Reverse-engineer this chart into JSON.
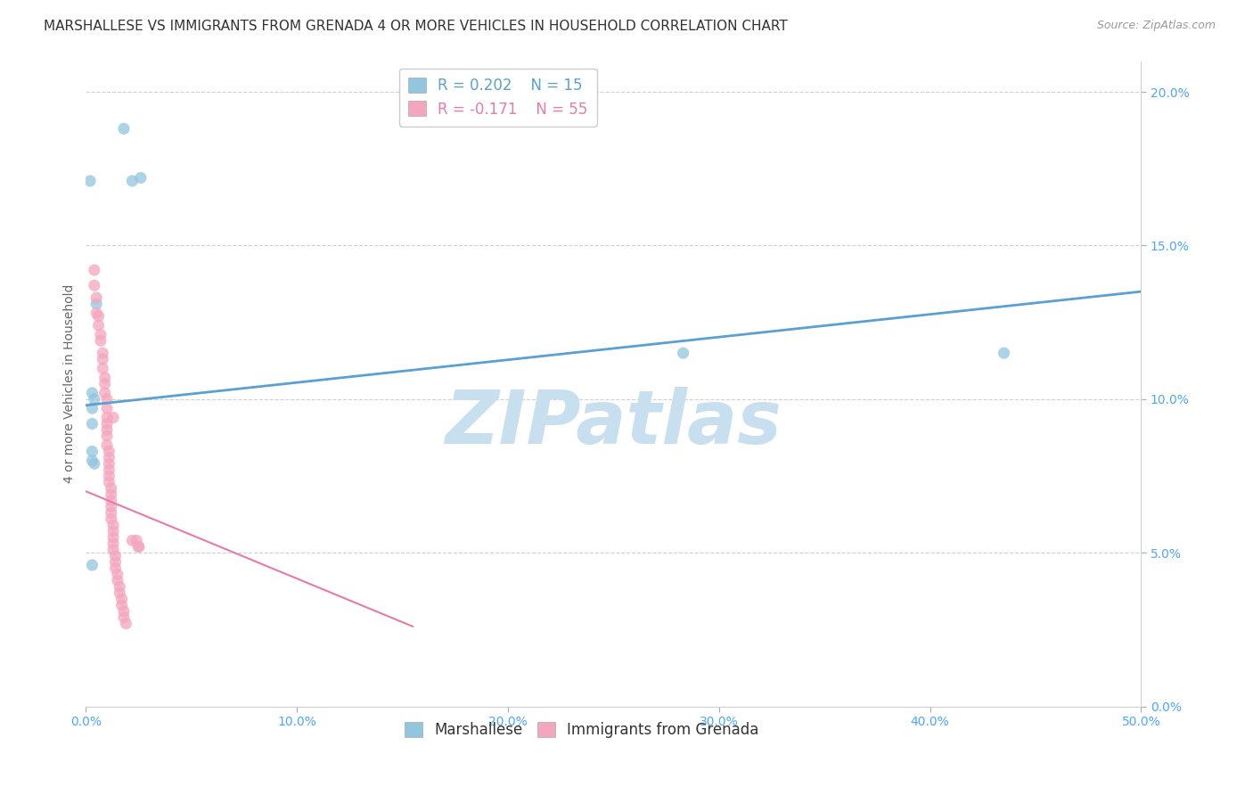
{
  "title": "MARSHALLESE VS IMMIGRANTS FROM GRENADA 4 OR MORE VEHICLES IN HOUSEHOLD CORRELATION CHART",
  "source": "Source: ZipAtlas.com",
  "ylabel": "4 or more Vehicles in Household",
  "legend_blue_r": "R = 0.202",
  "legend_blue_n": "N = 15",
  "legend_pink_r": "R = -0.171",
  "legend_pink_n": "N = 55",
  "legend_blue_label": "Marshallese",
  "legend_pink_label": "Immigrants from Grenada",
  "watermark": "ZIPatlas",
  "xlim": [
    0.0,
    0.5
  ],
  "ylim": [
    0.0,
    0.21
  ],
  "blue_scatter_x": [
    0.002,
    0.018,
    0.026,
    0.022,
    0.005,
    0.003,
    0.004,
    0.003,
    0.003,
    0.003,
    0.003,
    0.004,
    0.003,
    0.283,
    0.435
  ],
  "blue_scatter_y": [
    0.171,
    0.188,
    0.172,
    0.171,
    0.131,
    0.102,
    0.1,
    0.097,
    0.092,
    0.083,
    0.08,
    0.079,
    0.046,
    0.115,
    0.115
  ],
  "pink_scatter_x": [
    0.004,
    0.004,
    0.005,
    0.005,
    0.006,
    0.006,
    0.007,
    0.007,
    0.008,
    0.008,
    0.008,
    0.009,
    0.009,
    0.009,
    0.01,
    0.01,
    0.01,
    0.01,
    0.01,
    0.01,
    0.01,
    0.011,
    0.011,
    0.011,
    0.011,
    0.011,
    0.011,
    0.012,
    0.012,
    0.012,
    0.012,
    0.012,
    0.012,
    0.013,
    0.013,
    0.013,
    0.013,
    0.013,
    0.014,
    0.014,
    0.014,
    0.015,
    0.015,
    0.016,
    0.016,
    0.017,
    0.017,
    0.018,
    0.018,
    0.019,
    0.022,
    0.025,
    0.025,
    0.024,
    0.013
  ],
  "pink_scatter_y": [
    0.142,
    0.137,
    0.133,
    0.128,
    0.127,
    0.124,
    0.121,
    0.119,
    0.115,
    0.113,
    0.11,
    0.107,
    0.105,
    0.102,
    0.1,
    0.097,
    0.094,
    0.092,
    0.09,
    0.088,
    0.085,
    0.083,
    0.081,
    0.079,
    0.077,
    0.075,
    0.073,
    0.071,
    0.069,
    0.067,
    0.065,
    0.063,
    0.061,
    0.059,
    0.057,
    0.055,
    0.053,
    0.051,
    0.049,
    0.047,
    0.045,
    0.043,
    0.041,
    0.039,
    0.037,
    0.035,
    0.033,
    0.031,
    0.029,
    0.027,
    0.054,
    0.052,
    0.052,
    0.054,
    0.094
  ],
  "blue_line_x": [
    0.0,
    0.5
  ],
  "blue_line_y": [
    0.098,
    0.135
  ],
  "pink_line_x": [
    0.0,
    0.155
  ],
  "pink_line_y": [
    0.07,
    0.026
  ],
  "bg_color": "#ffffff",
  "blue_color": "#92c5de",
  "pink_color": "#f4a6be",
  "blue_line_color": "#5aa0d0",
  "pink_line_color": "#e87aaa",
  "grid_color": "#d0d0d0",
  "title_color": "#333333",
  "axis_label_color": "#4da6ff",
  "scatter_size": 90,
  "title_fontsize": 11,
  "source_fontsize": 9,
  "axis_fontsize": 10,
  "legend_fontsize": 12,
  "watermark_color": "#c8dff0",
  "watermark_fontsize": 60,
  "ytick_values": [
    0.0,
    0.05,
    0.1,
    0.15,
    0.2
  ]
}
